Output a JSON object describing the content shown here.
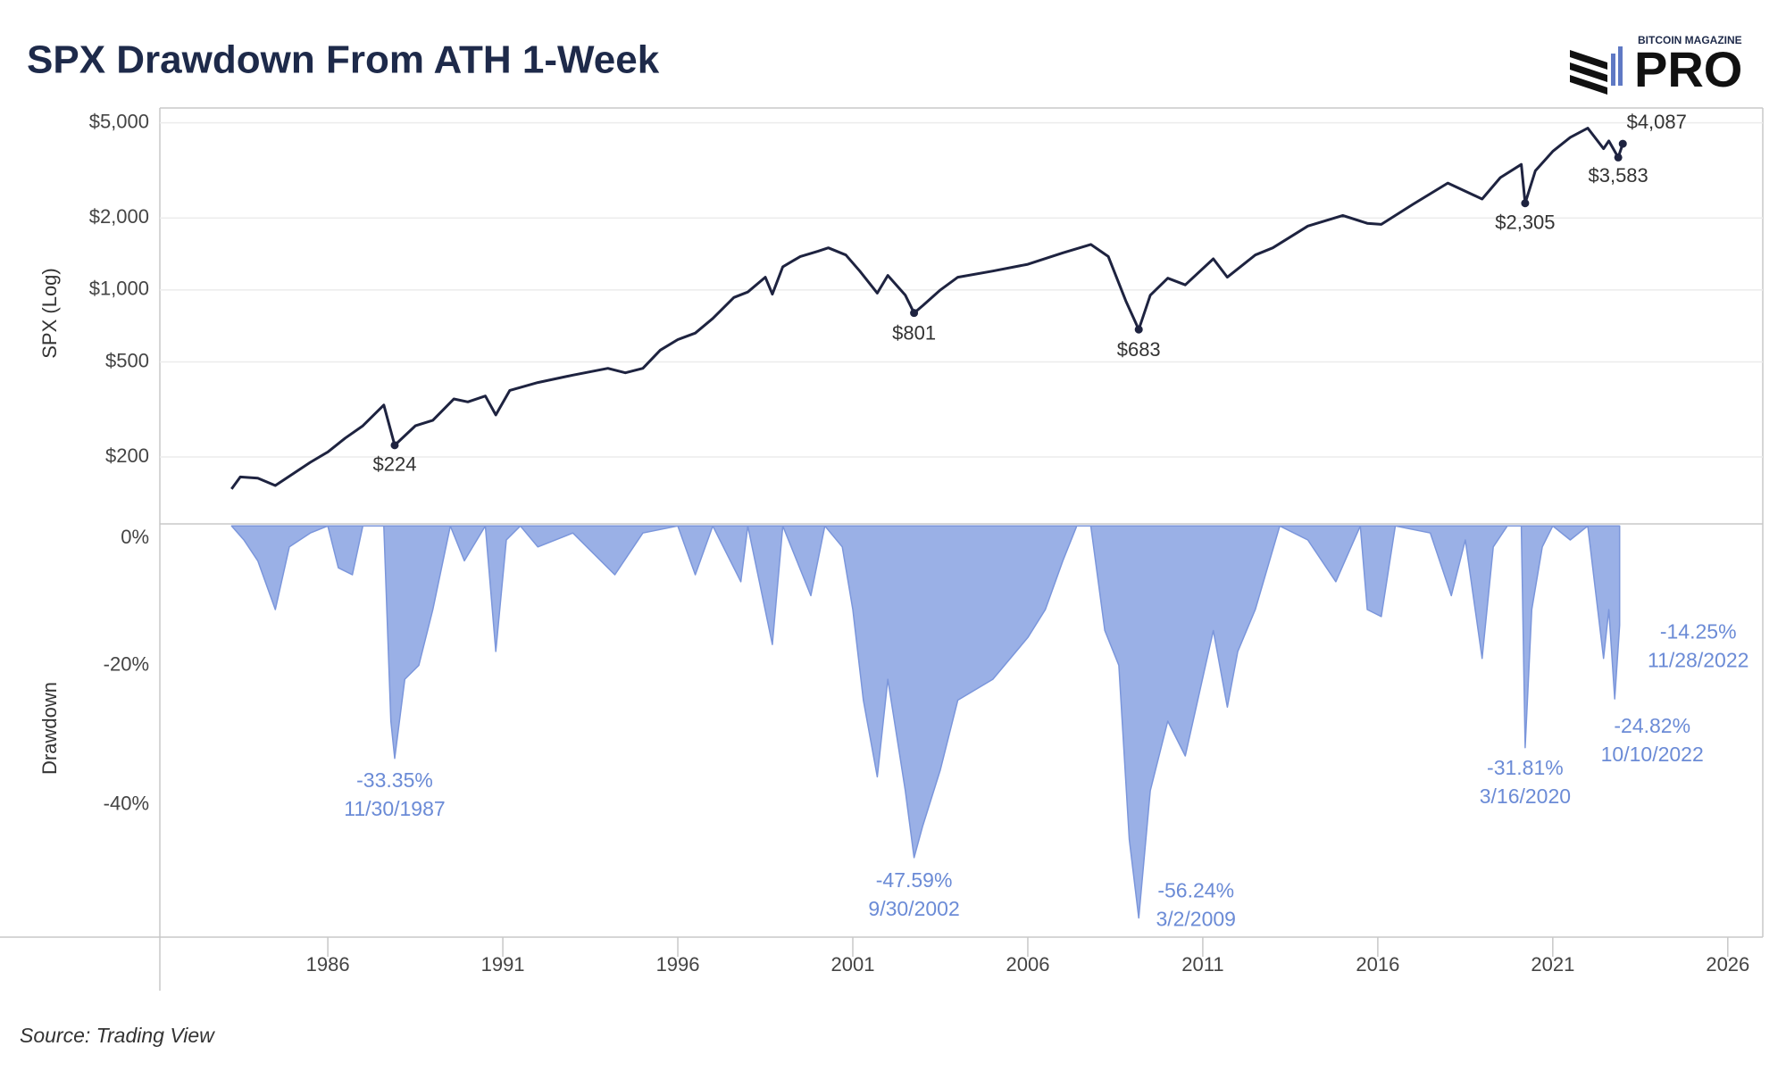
{
  "title": "SPX Drawdown From ATH 1-Week",
  "source": "Source: Trading View",
  "logo": {
    "top": "BITCOIN MAGAZINE",
    "main": "PRO"
  },
  "chart_data": [
    {
      "type": "line",
      "y_label": "SPX (Log)",
      "log_scale": true,
      "grid": true,
      "xlim": [
        1981.2,
        2027
      ],
      "ylim": [
        105,
        5770
      ],
      "yticks": [
        {
          "value": 200,
          "label": "$200"
        },
        {
          "value": 500,
          "label": "$500"
        },
        {
          "value": 1000,
          "label": "$1,000"
        },
        {
          "value": 2000,
          "label": "$2,000"
        },
        {
          "value": 5000,
          "label": "$5,000"
        }
      ],
      "x": [
        1983.25,
        1983.5,
        1984.0,
        1984.5,
        1985.0,
        1985.5,
        1986.0,
        1986.5,
        1987.0,
        1987.6,
        1987.91,
        1988.5,
        1989.0,
        1989.6,
        1990.0,
        1990.5,
        1990.8,
        1991.2,
        1992.0,
        1993.0,
        1994.0,
        1994.5,
        1995.0,
        1995.5,
        1996.0,
        1996.5,
        1997.0,
        1997.6,
        1998.0,
        1998.5,
        1998.7,
        1999.0,
        1999.5,
        2000.0,
        2000.3,
        2000.8,
        2001.2,
        2001.7,
        2002.0,
        2002.5,
        2002.75,
        2003.0,
        2003.5,
        2004.0,
        2005.0,
        2006.0,
        2007.0,
        2007.8,
        2008.3,
        2008.8,
        2009.17,
        2009.5,
        2010.0,
        2010.5,
        2011.3,
        2011.7,
        2012.5,
        2013.0,
        2014.0,
        2015.0,
        2015.7,
        2016.1,
        2017.0,
        2018.0,
        2018.98,
        2019.5,
        2020.1,
        2020.21,
        2020.5,
        2021.0,
        2021.5,
        2022.0,
        2022.45,
        2022.6,
        2022.87,
        2023.0
      ],
      "series": [
        {
          "name": "SPX",
          "color": "#1e2340",
          "values": [
            147,
            165,
            163,
            152,
            170,
            190,
            210,
            240,
            270,
            330,
            224,
            270,
            285,
            350,
            340,
            360,
            300,
            380,
            410,
            440,
            470,
            450,
            470,
            560,
            620,
            660,
            760,
            930,
            980,
            1130,
            960,
            1250,
            1380,
            1450,
            1500,
            1400,
            1200,
            970,
            1150,
            950,
            801,
            860,
            1000,
            1130,
            1200,
            1280,
            1430,
            1550,
            1380,
            900,
            683,
            950,
            1120,
            1050,
            1350,
            1130,
            1400,
            1500,
            1850,
            2050,
            1900,
            1880,
            2280,
            2800,
            2400,
            2950,
            3350,
            2305,
            3150,
            3800,
            4350,
            4750,
            3900,
            4200,
            3583,
            4087
          ]
        }
      ],
      "annotations": [
        {
          "x": 1987.91,
          "y": 224,
          "label": "$224"
        },
        {
          "x": 2002.75,
          "y": 801,
          "label": "$801"
        },
        {
          "x": 2009.17,
          "y": 683,
          "label": "$683"
        },
        {
          "x": 2020.21,
          "y": 2305,
          "label": "$2,305"
        },
        {
          "x": 2022.87,
          "y": 3583,
          "label": "$3,583"
        },
        {
          "x": 2023.0,
          "y": 4087,
          "label": "$4,087"
        }
      ]
    },
    {
      "type": "area",
      "y_label": "Drawdown",
      "xlim": [
        1981.2,
        2027
      ],
      "ylim": [
        -59,
        0.3
      ],
      "xticks": [
        1986,
        1991,
        1996,
        2001,
        2006,
        2011,
        2016,
        2021,
        2026
      ],
      "yticks": [
        {
          "value": -40,
          "label": "-40%"
        },
        {
          "value": -20,
          "label": "-20%"
        },
        {
          "value": 0,
          "label": "0%"
        }
      ],
      "x": [
        1983.25,
        1983.6,
        1984.0,
        1984.5,
        1984.9,
        1985.5,
        1986.0,
        1986.3,
        1986.7,
        1987.0,
        1987.6,
        1987.8,
        1987.91,
        1988.2,
        1988.6,
        1989.0,
        1989.5,
        1989.9,
        1990.5,
        1990.8,
        1991.1,
        1991.5,
        1992.0,
        1993.0,
        1994.2,
        1995.0,
        1996.0,
        1996.5,
        1997.0,
        1997.8,
        1998.0,
        1998.7,
        1999.0,
        1999.8,
        2000.2,
        2000.7,
        2001.0,
        2001.3,
        2001.7,
        2002.0,
        2002.5,
        2002.75,
        2003.0,
        2003.5,
        2004.0,
        2005.0,
        2006.0,
        2006.5,
        2007.0,
        2007.4,
        2007.8,
        2008.2,
        2008.6,
        2008.9,
        2009.17,
        2009.5,
        2010.0,
        2010.5,
        2011.3,
        2011.7,
        2012.0,
        2012.5,
        2013.2,
        2014.0,
        2014.8,
        2015.5,
        2015.7,
        2016.1,
        2016.5,
        2017.5,
        2018.1,
        2018.5,
        2018.98,
        2019.3,
        2019.7,
        2020.1,
        2020.21,
        2020.4,
        2020.7,
        2021.0,
        2021.5,
        2022.0,
        2022.45,
        2022.6,
        2022.77,
        2022.91
      ],
      "series": [
        {
          "name": "Drawdown",
          "color": "#9ab0e6",
          "stroke": "#7b96db",
          "values": [
            0,
            -2,
            -5,
            -12,
            -3,
            -1,
            0,
            -6,
            -7,
            0,
            0,
            -28,
            -33.35,
            -22,
            -20,
            -12,
            0,
            -5,
            0,
            -18,
            -2,
            0,
            -3,
            -1,
            -7,
            -1,
            0,
            -7,
            0,
            -8,
            0,
            -17,
            0,
            -10,
            0,
            -3,
            -12,
            -25,
            -36,
            -22,
            -38,
            -47.59,
            -43,
            -35,
            -25,
            -22,
            -16,
            -12,
            -5,
            0,
            0,
            -15,
            -20,
            -45,
            -56.24,
            -38,
            -28,
            -33,
            -15,
            -26,
            -18,
            -12,
            0,
            -2,
            -8,
            0,
            -12,
            -13,
            0,
            -1,
            -10,
            -2,
            -19,
            -3,
            0,
            0,
            -31.81,
            -12,
            -3,
            0,
            -2,
            0,
            -19,
            -12,
            -24.82,
            -14.25
          ]
        }
      ],
      "annotations": [
        {
          "x": 1987.91,
          "y": -33.35,
          "label": "-33.35%",
          "date": "11/30/1987"
        },
        {
          "x": 2002.75,
          "y": -47.59,
          "label": "-47.59%",
          "date": "9/30/2002"
        },
        {
          "x": 2009.17,
          "y": -56.24,
          "label": "-56.24%",
          "date": "3/2/2009"
        },
        {
          "x": 2020.21,
          "y": -31.81,
          "label": "-31.81%",
          "date": "3/16/2020"
        },
        {
          "x": 2022.77,
          "y": -24.82,
          "label": "-24.82%",
          "date": "10/10/2022"
        },
        {
          "x": 2022.91,
          "y": -14.25,
          "label": "-14.25%",
          "date": "11/28/2022"
        }
      ]
    }
  ]
}
